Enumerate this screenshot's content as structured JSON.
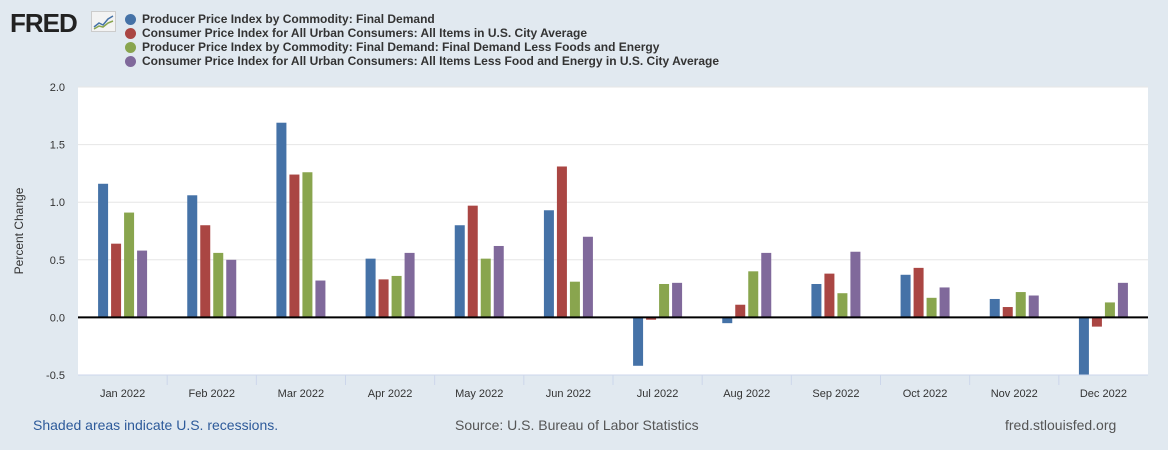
{
  "logo": "FRED",
  "legend": [
    {
      "name": "Producer Price Index by Commodity: Final Demand",
      "color": "#4572a7"
    },
    {
      "name": "Consumer Price Index for All Urban Consumers: All Items in U.S. City Average",
      "color": "#aa4643"
    },
    {
      "name": "Producer Price Index by Commodity: Final Demand: Final Demand Less Foods and Energy",
      "color": "#89a54e"
    },
    {
      "name": "Consumer Price Index for All Urban Consumers: All Items Less Food and Energy in U.S. City Average",
      "color": "#80699b"
    }
  ],
  "footer": {
    "recessions": "Shaded areas indicate U.S. recessions.",
    "source": "Source: U.S. Bureau of Labor Statistics",
    "site": "fred.stlouisfed.org"
  },
  "chart_data": {
    "type": "bar",
    "ylabel": "Percent Change",
    "ylim": [
      -0.5,
      2.0
    ],
    "yticks": [
      "2.0",
      "1.5",
      "1.0",
      "0.5",
      "0.0",
      "-0.5"
    ],
    "categories": [
      "Jan 2022",
      "Feb 2022",
      "Mar 2022",
      "Apr 2022",
      "May 2022",
      "Jun 2022",
      "Jul 2022",
      "Aug 2022",
      "Sep 2022",
      "Oct 2022",
      "Nov 2022",
      "Dec 2022"
    ],
    "series": [
      {
        "name": "PPI Final Demand",
        "values": [
          1.16,
          1.06,
          1.69,
          0.51,
          0.8,
          0.93,
          -0.42,
          -0.05,
          0.29,
          0.37,
          0.16,
          -0.5
        ]
      },
      {
        "name": "CPI All Items",
        "values": [
          0.64,
          0.8,
          1.24,
          0.33,
          0.97,
          1.31,
          -0.02,
          0.11,
          0.38,
          0.43,
          0.09,
          -0.08
        ]
      },
      {
        "name": "PPI Less Foods and Energy",
        "values": [
          0.91,
          0.56,
          1.26,
          0.36,
          0.51,
          0.31,
          0.29,
          0.4,
          0.21,
          0.17,
          0.22,
          0.13
        ]
      },
      {
        "name": "CPI Less Food and Energy",
        "values": [
          0.58,
          0.5,
          0.32,
          0.56,
          0.62,
          0.7,
          0.3,
          0.56,
          0.57,
          0.26,
          0.19,
          0.3
        ]
      }
    ]
  }
}
